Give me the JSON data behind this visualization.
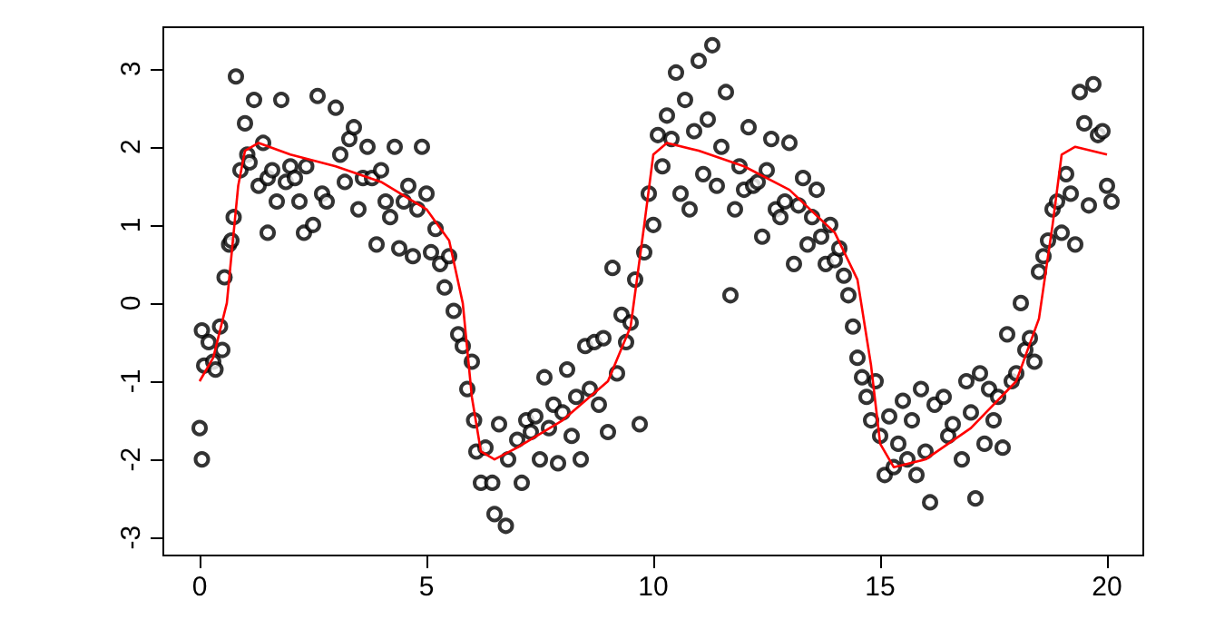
{
  "chart_data": {
    "type": "scatter",
    "xlim": [
      -0.8,
      20.8
    ],
    "ylim": [
      -3.23,
      3.53
    ],
    "xticks": [
      0,
      5,
      10,
      15,
      20
    ],
    "yticks": [
      -3,
      -2,
      -1,
      0,
      1,
      2,
      3
    ],
    "grid": false,
    "marker": "circle",
    "series": [
      {
        "color": "#000000",
        "x": [
          0,
          0.05,
          0.05,
          0.1,
          0.2,
          0.3,
          0.35,
          0.45,
          0.5,
          0.55,
          0.65,
          0.7,
          0.75,
          0.8,
          0.9,
          1.0,
          1.05,
          1.1,
          1.2,
          1.3,
          1.4,
          1.5,
          1.5,
          1.6,
          1.7,
          1.8,
          1.9,
          2.0,
          2.1,
          2.2,
          2.3,
          2.35,
          2.5,
          2.6,
          2.7,
          2.8,
          3.0,
          3.1,
          3.2,
          3.3,
          3.4,
          3.5,
          3.6,
          3.7,
          3.8,
          3.9,
          4.0,
          4.1,
          4.2,
          4.3,
          4.4,
          4.5,
          4.6,
          4.7,
          4.8,
          4.9,
          5.0,
          5.1,
          5.2,
          5.3,
          5.4,
          5.5,
          5.6,
          5.7,
          5.8,
          5.9,
          6.0,
          6.05,
          6.1,
          6.2,
          6.3,
          6.45,
          6.5,
          6.6,
          6.75,
          6.8,
          7.0,
          7.1,
          7.2,
          7.3,
          7.4,
          7.5,
          7.6,
          7.7,
          7.8,
          7.9,
          8.0,
          8.1,
          8.2,
          8.3,
          8.4,
          8.5,
          8.6,
          8.7,
          8.8,
          8.9,
          9.0,
          9.1,
          9.2,
          9.3,
          9.4,
          9.5,
          9.6,
          9.7,
          9.8,
          9.9,
          10.0,
          10.1,
          10.2,
          10.3,
          10.4,
          10.5,
          10.6,
          10.7,
          10.8,
          10.9,
          11.0,
          11.1,
          11.2,
          11.3,
          11.4,
          11.5,
          11.6,
          11.7,
          11.8,
          11.9,
          12.0,
          12.1,
          12.2,
          12.3,
          12.4,
          12.5,
          12.6,
          12.7,
          12.8,
          12.9,
          13.0,
          13.1,
          13.2,
          13.3,
          13.4,
          13.5,
          13.6,
          13.7,
          13.8,
          13.9,
          14.0,
          14.1,
          14.2,
          14.3,
          14.4,
          14.5,
          14.6,
          14.7,
          14.8,
          14.9,
          15.0,
          15.1,
          15.2,
          15.3,
          15.4,
          15.5,
          15.6,
          15.7,
          15.8,
          15.9,
          16.0,
          16.1,
          16.2,
          16.4,
          16.5,
          16.6,
          16.8,
          16.9,
          17.0,
          17.1,
          17.2,
          17.3,
          17.4,
          17.5,
          17.6,
          17.7,
          17.8,
          17.9,
          18.0,
          18.1,
          18.2,
          18.3,
          18.4,
          18.5,
          18.6,
          18.7,
          18.8,
          18.9,
          19.0,
          19.1,
          19.2,
          19.3,
          19.4,
          19.5,
          19.6,
          19.7,
          19.8,
          19.9,
          20.0,
          20.1
        ],
        "values": [
          -1.6,
          -2.0,
          -0.35,
          -0.8,
          -0.5,
          -0.75,
          -0.85,
          -0.3,
          -0.6,
          0.33,
          0.75,
          0.8,
          1.1,
          2.9,
          1.7,
          2.3,
          1.9,
          1.8,
          2.6,
          1.5,
          2.05,
          1.6,
          0.9,
          1.7,
          1.3,
          2.6,
          1.55,
          1.75,
          1.6,
          1.3,
          0.9,
          1.75,
          1.0,
          2.65,
          1.4,
          1.3,
          2.5,
          1.9,
          1.55,
          2.1,
          2.25,
          1.2,
          1.6,
          2.0,
          1.6,
          0.75,
          1.7,
          1.3,
          1.1,
          2.0,
          0.7,
          1.3,
          1.5,
          0.6,
          1.2,
          2.0,
          1.4,
          0.65,
          0.95,
          0.5,
          0.2,
          0.6,
          -0.1,
          -0.4,
          -0.55,
          -1.1,
          -0.75,
          -1.5,
          -1.9,
          -2.3,
          -1.85,
          -2.3,
          -2.7,
          -1.55,
          -2.85,
          -2.0,
          -1.75,
          -2.3,
          -1.5,
          -1.65,
          -1.45,
          -2.0,
          -0.95,
          -1.6,
          -1.3,
          -2.05,
          -1.4,
          -0.85,
          -1.7,
          -1.2,
          -2.0,
          -0.55,
          -1.1,
          -0.5,
          -1.3,
          -0.45,
          -1.65,
          0.45,
          -0.9,
          -0.15,
          -0.5,
          -0.25,
          0.3,
          -1.55,
          0.65,
          1.4,
          1.0,
          2.15,
          1.75,
          2.4,
          2.1,
          2.95,
          1.4,
          2.6,
          1.2,
          2.2,
          3.1,
          1.65,
          2.35,
          3.3,
          1.5,
          2.0,
          2.7,
          0.1,
          1.2,
          1.75,
          1.45,
          2.25,
          1.5,
          1.55,
          0.85,
          1.7,
          2.1,
          1.2,
          1.1,
          1.3,
          2.05,
          0.5,
          1.25,
          1.6,
          0.75,
          1.1,
          1.45,
          0.85,
          0.5,
          1.0,
          0.55,
          0.7,
          0.35,
          0.1,
          -0.3,
          -0.7,
          -0.95,
          -1.2,
          -1.5,
          -1.0,
          -1.7,
          -2.2,
          -1.45,
          -2.1,
          -1.8,
          -1.25,
          -2.0,
          -1.5,
          -2.2,
          -1.1,
          -1.9,
          -2.55,
          -1.3,
          -1.2,
          -1.7,
          -1.55,
          -2.0,
          -1.0,
          -1.4,
          -2.5,
          -0.9,
          -1.8,
          -1.1,
          -1.5,
          -1.2,
          -1.85,
          -0.4,
          -1.0,
          -0.9,
          0.0,
          -0.6,
          -0.45,
          -0.75,
          0.4,
          0.6,
          0.8,
          1.2,
          1.3,
          0.9,
          1.65,
          1.4,
          0.75,
          2.7,
          2.3,
          1.25,
          2.8,
          2.15,
          2.2,
          1.5,
          1.3
        ]
      },
      {
        "type": "line",
        "color": "#ff0000",
        "marker": "none",
        "line_style": "solid",
        "x": [
          0,
          0.3,
          0.6,
          0.85,
          1.0,
          1.3,
          2,
          3,
          4,
          5,
          5.5,
          5.8,
          6,
          6.2,
          6.5,
          7,
          8,
          9,
          9.5,
          9.8,
          10,
          10.3,
          11,
          12,
          13,
          14,
          14.5,
          14.8,
          15,
          15.3,
          16,
          17,
          18,
          18.5,
          18.8,
          19,
          19.3,
          20
        ],
        "values": [
          -1,
          -0.7,
          0,
          1.5,
          1.95,
          2.05,
          1.9,
          1.75,
          1.55,
          1.2,
          0.8,
          0,
          -1.2,
          -1.9,
          -2.0,
          -1.85,
          -1.5,
          -1.0,
          -0.3,
          1.0,
          1.9,
          2.05,
          1.95,
          1.75,
          1.45,
          0.9,
          0.3,
          -0.8,
          -1.8,
          -2.1,
          -2.0,
          -1.6,
          -1.0,
          -0.2,
          1.0,
          1.9,
          2.0,
          1.9
        ]
      }
    ]
  }
}
